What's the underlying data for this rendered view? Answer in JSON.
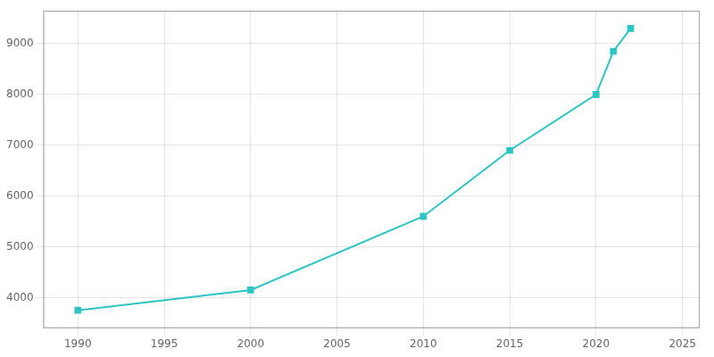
{
  "chart_data": {
    "type": "line",
    "x": [
      1990,
      2000,
      2010,
      2015,
      2020,
      2021,
      2022
    ],
    "values": [
      3750,
      4150,
      5600,
      6900,
      8000,
      8850,
      9300
    ],
    "color": "#2EC4C4",
    "marker": "square",
    "xlim": [
      1988,
      2026
    ],
    "ylim": [
      3400,
      9650
    ],
    "xticks": [
      1990,
      1995,
      2000,
      2005,
      2010,
      2015,
      2020,
      2025
    ],
    "yticks": [
      4000,
      5000,
      6000,
      7000,
      8000,
      9000
    ],
    "grid": true
  }
}
